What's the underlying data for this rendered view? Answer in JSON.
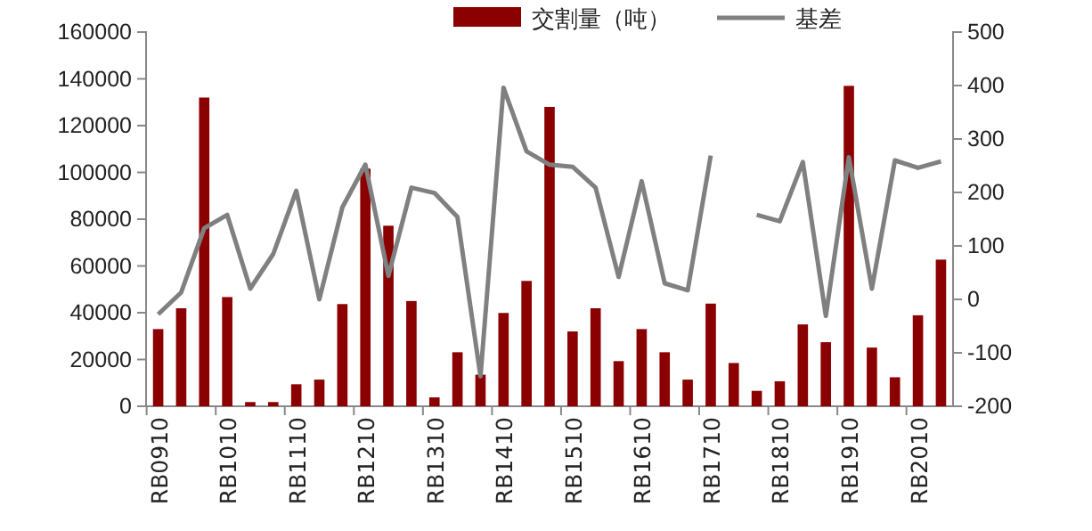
{
  "chart_data": {
    "type": "bar",
    "categories": [
      "RB0910",
      null,
      null,
      "RB1010",
      null,
      null,
      "RB1110",
      null,
      null,
      "RB1210",
      null,
      null,
      "RB1310",
      null,
      null,
      "RB1410",
      null,
      null,
      "RB1510",
      null,
      null,
      "RB1610",
      null,
      null,
      "RB1710",
      null,
      null,
      "RB1810",
      null,
      null,
      "RB1910",
      null,
      null,
      "RB2010",
      null
    ],
    "series": [
      {
        "name": "交割量（吨）",
        "color": "#8b0000",
        "values": [
          33000,
          41900,
          132000,
          46700,
          1800,
          1800,
          9400,
          11400,
          43700,
          101600,
          77200,
          45000,
          3800,
          23100,
          13500,
          39900,
          53600,
          128000,
          32000,
          41900,
          19300,
          33000,
          23100,
          11400,
          43900,
          18500,
          6600,
          10700,
          35000,
          27400,
          137000,
          25100,
          12400,
          38900,
          62700
        ]
      },
      {
        "name": "基差",
        "type": "line",
        "axis": "y2",
        "color": "#808080",
        "values": [
          -28,
          13,
          133,
          158,
          20,
          85,
          203,
          0,
          172,
          252,
          44,
          209,
          199,
          154,
          -144,
          396,
          277,
          252,
          248,
          209,
          42,
          221,
          30,
          17,
          269,
          null,
          158,
          146,
          257,
          -31,
          266,
          20,
          260,
          246,
          258
        ]
      }
    ],
    "ylim": [
      0,
      160000
    ],
    "yticks": [
      0,
      20000,
      40000,
      60000,
      80000,
      100000,
      120000,
      140000,
      160000
    ],
    "y2lim": [
      -200,
      500
    ],
    "y2ticks": [
      -200,
      -100,
      0,
      100,
      200,
      300,
      400,
      500
    ],
    "legend": "top",
    "grid": false
  }
}
